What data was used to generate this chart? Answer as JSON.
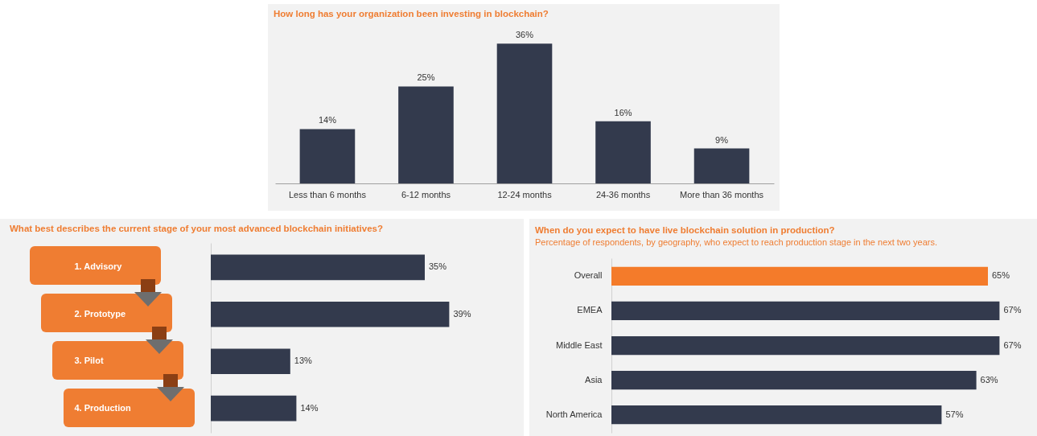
{
  "chart_data": [
    {
      "type": "bar",
      "title": "How long has your organization been investing in blockchain?",
      "categories": [
        "Less than 6 months",
        "6-12 months",
        "12-24 months",
        "24-36 months",
        "More than 36 months"
      ],
      "values": [
        14,
        25,
        36,
        16,
        9
      ],
      "value_labels": [
        "14%",
        "25%",
        "36%",
        "16%",
        "9%"
      ],
      "color": "#333a4d"
    },
    {
      "type": "bar",
      "orientation": "horizontal",
      "title": "What best describes the current stage of your most advanced blockchain initiatives?",
      "categories": [
        "1. Advisory",
        "2. Prototype",
        "3. Pilot",
        "4. Production"
      ],
      "values": [
        35,
        39,
        13,
        14
      ],
      "value_labels": [
        "35%",
        "39%",
        "13%",
        "14%"
      ],
      "color": "#333a4d"
    },
    {
      "type": "bar",
      "orientation": "horizontal",
      "title": "When do you expect to have live blockchain solution in production?",
      "subtitle": "Percentage of respondents, by geography, who expect to reach production stage in the next two years.",
      "categories": [
        "Overall",
        "EMEA",
        "Middle East",
        "Asia",
        "North America"
      ],
      "values": [
        65,
        67,
        67,
        63,
        57
      ],
      "value_labels": [
        "65%",
        "67%",
        "67%",
        "63%",
        "57%"
      ],
      "colors": [
        "#f47b2a",
        "#333a4d",
        "#333a4d",
        "#333a4d",
        "#333a4d"
      ]
    }
  ]
}
